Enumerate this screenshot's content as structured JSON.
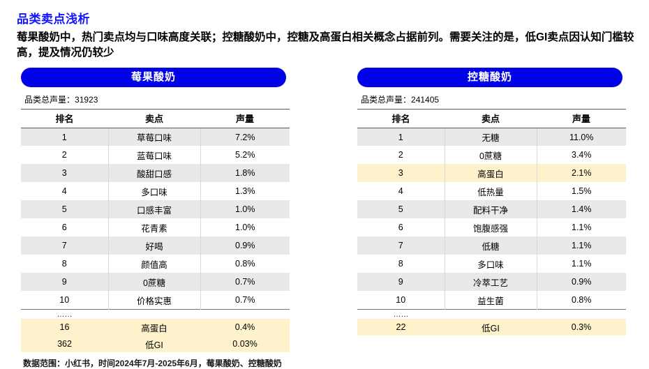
{
  "page": {
    "title": "品类卖点浅析",
    "subtitle": "莓果酸奶中，热门卖点均与口味高度关联；控糖酸奶中，控糖及高蛋白相关概念占据前列。需要关注的是，低GI卖点因认知门槛较高，提及情况仍较少",
    "footnote": "数据范围：小红书，时间2024年7月-2025年6月，莓果酸奶、控糖酸奶"
  },
  "colors": {
    "title_blue": "#1414ff",
    "pill_blue": "#0202e6",
    "row_alt_gray": "#e9e9e9",
    "highlight_yellow": "#fdf2cc"
  },
  "tables": [
    {
      "name": "莓果酸奶",
      "total_label": "品类总声量：",
      "total_value": "31923",
      "columns": [
        "排名",
        "卖点",
        "声量"
      ],
      "rows": [
        {
          "rank": "1",
          "point": "草莓口味",
          "share": "7.2%"
        },
        {
          "rank": "2",
          "point": "蓝莓口味",
          "share": "5.2%"
        },
        {
          "rank": "3",
          "point": "酸甜口感",
          "share": "1.8%"
        },
        {
          "rank": "4",
          "point": "多口味",
          "share": "1.3%"
        },
        {
          "rank": "5",
          "point": "口感丰富",
          "share": "1.0%"
        },
        {
          "rank": "6",
          "point": "花青素",
          "share": "1.0%"
        },
        {
          "rank": "7",
          "point": "好喝",
          "share": "0.9%"
        },
        {
          "rank": "8",
          "point": "颜值高",
          "share": "0.8%"
        },
        {
          "rank": "9",
          "point": "0蔗糖",
          "share": "0.7%"
        },
        {
          "rank": "10",
          "point": "价格实惠",
          "share": "0.7%"
        }
      ],
      "ellipsis": "……",
      "extra_rows": [
        {
          "rank": "16",
          "point": "高蛋白",
          "share": "0.4%"
        },
        {
          "rank": "362",
          "point": "低GI",
          "share": "0.03%"
        }
      ]
    },
    {
      "name": "控糖酸奶",
      "total_label": "品类总声量：",
      "total_value": "241405",
      "columns": [
        "排名",
        "卖点",
        "声量"
      ],
      "rows": [
        {
          "rank": "1",
          "point": "无糖",
          "share": "11.0%"
        },
        {
          "rank": "2",
          "point": "0蔗糖",
          "share": "3.4%"
        },
        {
          "rank": "3",
          "point": "高蛋白",
          "share": "2.1%",
          "highlight": true
        },
        {
          "rank": "4",
          "point": "低热量",
          "share": "1.5%"
        },
        {
          "rank": "5",
          "point": "配料干净",
          "share": "1.4%"
        },
        {
          "rank": "6",
          "point": "饱腹感强",
          "share": "1.1%"
        },
        {
          "rank": "7",
          "point": "低糖",
          "share": "1.1%"
        },
        {
          "rank": "8",
          "point": "多口味",
          "share": "1.1%"
        },
        {
          "rank": "9",
          "point": "冷萃工艺",
          "share": "0.9%"
        },
        {
          "rank": "10",
          "point": "益生菌",
          "share": "0.8%"
        }
      ],
      "ellipsis": "……",
      "extra_rows": [
        {
          "rank": "22",
          "point": "低GI",
          "share": "0.3%"
        }
      ]
    }
  ]
}
